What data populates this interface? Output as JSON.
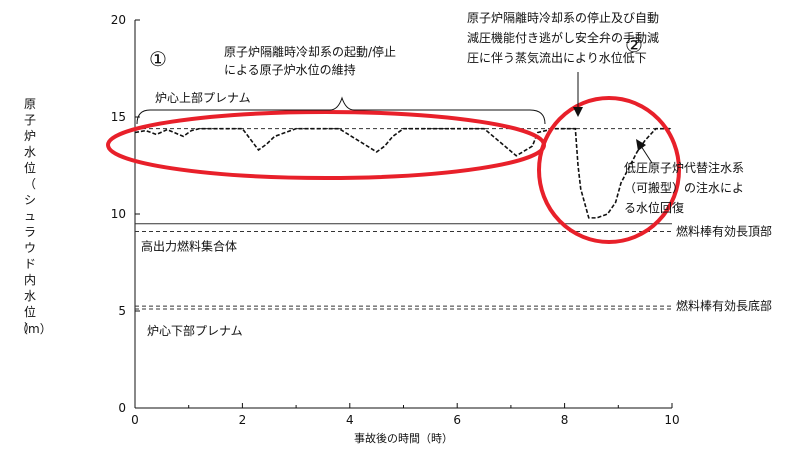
{
  "chart_data": {
    "type": "line",
    "title": "",
    "xlabel": "事故後の時間（時）",
    "ylabel": "原子炉水位（シュラウド内水位）",
    "yunit": "（m）",
    "xlim": [
      0,
      10
    ],
    "ylim": [
      0,
      20
    ],
    "xticks": [
      0,
      2,
      4,
      6,
      8,
      10
    ],
    "yticks": [
      0,
      5,
      10,
      15,
      20
    ],
    "grid": false,
    "series": [
      {
        "name": "",
        "style": "dashed",
        "x": [
          0,
          0.2,
          0.4,
          0.6,
          0.9,
          1.05,
          1.2,
          2.0,
          2.3,
          2.45,
          2.6,
          3.0,
          3.2,
          3.8,
          4.5,
          4.65,
          4.8,
          5.0,
          5.2,
          6.5,
          7.1,
          7.4,
          7.5,
          7.8,
          8.1,
          8.2,
          8.25,
          8.3,
          8.45,
          8.6,
          8.8,
          8.95,
          9.05,
          9.2,
          9.35,
          9.5,
          9.7,
          10.0
        ],
        "y": [
          14.2,
          14.3,
          14.1,
          14.35,
          14.0,
          14.3,
          14.4,
          14.4,
          13.3,
          13.6,
          14.0,
          14.4,
          14.4,
          14.4,
          13.2,
          13.5,
          14.0,
          14.4,
          14.4,
          14.4,
          13.0,
          13.5,
          14.2,
          14.4,
          14.4,
          14.4,
          12.5,
          11.3,
          9.8,
          9.8,
          10.0,
          10.6,
          11.6,
          12.4,
          13.2,
          13.8,
          14.4,
          14.4
        ]
      }
    ],
    "reference_lines": [
      {
        "label": "",
        "y": 14.4,
        "style": "dashed",
        "x_start": 0,
        "x_end": 10
      },
      {
        "label": "高出力燃料集合体",
        "y": 9.5,
        "style": "solid",
        "x_start": 0,
        "x_end": 10
      },
      {
        "label": "燃料棒有効長頂部",
        "y": 9.1,
        "style": "dashed",
        "x_start": 0,
        "x_end": 10
      },
      {
        "label": "燃料棒有効長底部",
        "y": 5.25,
        "style": "dashed",
        "x_start": 0,
        "x_end": 10
      },
      {
        "label": "",
        "y": 5.1,
        "style": "dashed",
        "x_start": 0,
        "x_end": 10
      }
    ],
    "region_labels": {
      "upper_plenum": "炉心上部プレナム",
      "lower_plenum": "炉心下部プレナム"
    },
    "annotations": {
      "marker_1": "①",
      "marker_2": "②",
      "ric": [
        "原子炉隔離時冷却系の起動/停止",
        "による原子炉水位の維持"
      ],
      "depressurize": [
        "原子炉隔離時冷却系の停止及び自動",
        "減圧機能付き逃がし安全弁の手動減",
        "圧に伴う蒸気流出により水位低下"
      ],
      "recovery": [
        "低圧原子炉代替注水系",
        "（可搬型）の注水によ",
        "る水位回復"
      ]
    },
    "highlight_color": "#e8202a"
  }
}
